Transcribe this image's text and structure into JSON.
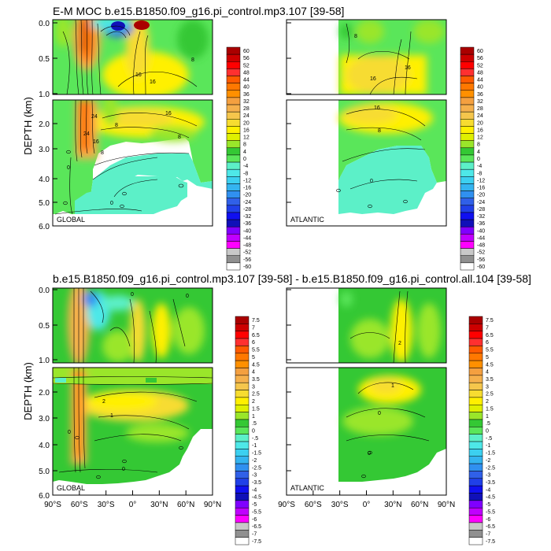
{
  "chart_data": {
    "type": "heatmap",
    "top_title": "E-M MOC  b.e15.B1850.f09_g16.pi_control.mp3.107 [39-58]",
    "bottom_title": "b.e15.B1850.f09_g16.pi_control.mp3.107 [39-58] - b.e15.B1850.f09_g16.pi_control.all.104 [39-58]",
    "ylabel": "DEPTH (km)",
    "y_ticks_upper": [
      "0.0",
      "0.5",
      "1.0"
    ],
    "y_ticks_lower": [
      "2.0",
      "3.0",
      "4.0",
      "5.0",
      "6.0"
    ],
    "x_ticks": [
      "90°S",
      "60°S",
      "30°S",
      "0°",
      "30°N",
      "60°N",
      "90°N"
    ],
    "regions": [
      "GLOBAL",
      "ATLANTIC",
      "GLOBAL",
      "ATLANTIC"
    ],
    "colorbar_top": [
      "60",
      "56",
      "52",
      "48",
      "44",
      "40",
      "36",
      "32",
      "28",
      "24",
      "20",
      "16",
      "12",
      "8",
      "4",
      "0",
      "-4",
      "-8",
      "-12",
      "-16",
      "-20",
      "-24",
      "-28",
      "-32",
      "-36",
      "-40",
      "-44",
      "-48",
      "-52",
      "-56",
      "-60"
    ],
    "colorbar_bottom": [
      "7.5",
      "7",
      "6.5",
      "6",
      "5.5",
      "5",
      "4.5",
      "4",
      "3.5",
      "3",
      "2.5",
      "2",
      "1.5",
      "1",
      ".5",
      "0",
      "-.5",
      "-1",
      "-1.5",
      "-2",
      "-2.5",
      "-3",
      "-3.5",
      "-4",
      "-4.5",
      "-5",
      "-5.5",
      "-6",
      "-6.5",
      "-7",
      "-7.5"
    ],
    "palette": [
      "#aa0000",
      "#cc0000",
      "#ff0000",
      "#ff3030",
      "#ff5a00",
      "#ff7800",
      "#ff9000",
      "#f4a040",
      "#f5b04c",
      "#f5c64c",
      "#f7dc30",
      "#fff000",
      "#dff000",
      "#9ae62a",
      "#34c834",
      "#5ae65a",
      "#5cf0c8",
      "#4ee8e8",
      "#3cd0f0",
      "#34b4f0",
      "#3090f0",
      "#3060e8",
      "#2040e8",
      "#1010f0",
      "#1010b8",
      "#8000ff",
      "#c000ff",
      "#ff00ff",
      "#c8c8c8",
      "#909090",
      "#ffffff"
    ],
    "contour_labels_top_global": [
      "24",
      "16",
      "8",
      "16",
      "8",
      "16",
      "24",
      "16",
      "8",
      "8",
      "0",
      "0"
    ],
    "contour_labels_top_atlantic": [
      "16",
      "16",
      "8",
      "16",
      "8",
      "0"
    ],
    "contour_labels_bottom_global": [
      "2",
      "0",
      "0",
      "1",
      "0",
      "0"
    ],
    "contour_labels_bottom_atlantic": [
      "2",
      "1",
      "0",
      "0"
    ]
  }
}
